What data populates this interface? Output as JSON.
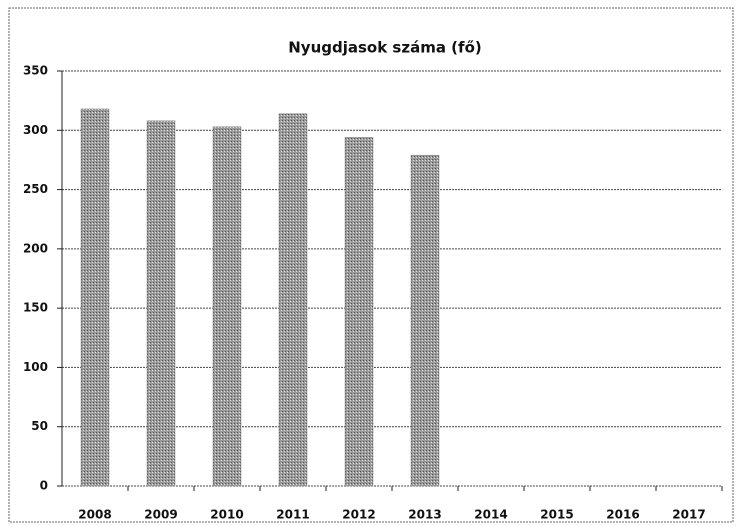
{
  "chart_data": {
    "type": "bar",
    "title": "Nyugdjasok száma (fő)",
    "categories": [
      "2008",
      "2009",
      "2010",
      "2011",
      "2012",
      "2013",
      "2014",
      "2015",
      "2016",
      "2017"
    ],
    "values": [
      318,
      308,
      303,
      314,
      294,
      279,
      null,
      null,
      null,
      null
    ],
    "color": "#8a8a8a",
    "ylim": [
      0,
      350
    ],
    "yticks": [
      0,
      50,
      100,
      150,
      200,
      250,
      300,
      350
    ],
    "grid": true
  }
}
